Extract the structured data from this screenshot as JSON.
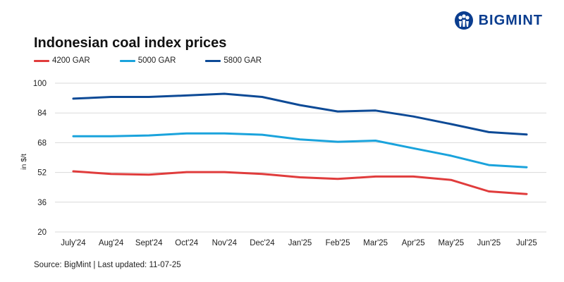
{
  "brand": {
    "name": "BIGMINT",
    "color": "#0a3d8f"
  },
  "chart_data": {
    "type": "line",
    "title": "Indonesian coal index prices",
    "ylabel": "in $/t",
    "xlabel": "",
    "categories": [
      "July'24",
      "Aug'24",
      "Sept'24",
      "Oct'24",
      "Nov'24",
      "Dec'24",
      "Jan'25",
      "Feb'25",
      "Mar'25",
      "Apr'25",
      "May'25",
      "Jun'25",
      "Jul'25"
    ],
    "ylim": [
      20,
      100
    ],
    "yticks": [
      "100",
      "84",
      "68",
      "52",
      "36",
      "20"
    ],
    "grid": true,
    "legend_position": "top-left",
    "series": [
      {
        "name": "4200 GAR",
        "color": "#e03c3c",
        "values": [
          52.6,
          51.2,
          50.8,
          52.2,
          52.2,
          51.2,
          49.4,
          48.5,
          49.8,
          49.8,
          48.0,
          41.8,
          40.4
        ]
      },
      {
        "name": "5000 GAR",
        "color": "#1aa3dc",
        "values": [
          71.5,
          71.5,
          71.9,
          73.0,
          73.0,
          72.3,
          69.8,
          68.5,
          69.1,
          65.0,
          61.0,
          56.0,
          54.8
        ]
      },
      {
        "name": "5800 GAR",
        "color": "#0d4a96",
        "values": [
          91.7,
          92.6,
          92.6,
          93.4,
          94.3,
          92.6,
          88.2,
          84.8,
          85.3,
          82.1,
          78.0,
          73.7,
          72.4
        ]
      }
    ]
  },
  "source": "Source: BigMint | Last updated: 11-07-25"
}
